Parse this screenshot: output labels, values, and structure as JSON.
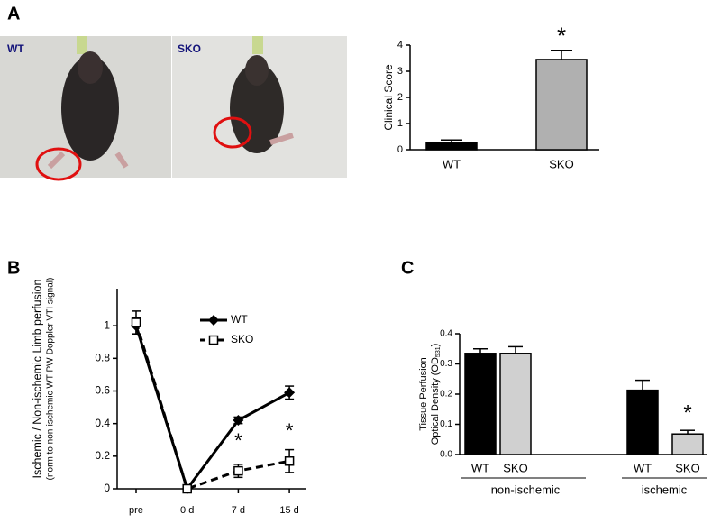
{
  "panels": [
    "A",
    "B",
    "C"
  ],
  "photos": [
    {
      "label": "WT"
    },
    {
      "label": "SKO"
    }
  ],
  "chart_data": [
    {
      "type": "bar",
      "ylabel": "Clinical Score",
      "categories": [
        "WT",
        "SKO"
      ],
      "values": [
        0.25,
        3.45
      ],
      "errors": [
        0.12,
        0.35
      ],
      "colors": [
        "#000000",
        "#b0b0b0"
      ],
      "significance": [
        null,
        "*"
      ],
      "ylim": [
        0,
        4
      ],
      "yticks": [
        0,
        1,
        2,
        3,
        4
      ]
    },
    {
      "type": "line",
      "ylabel": "Ischemic / Non-ischemic Limb perfusion",
      "ylabel_note": "(norm to non-ischemic WT PW-Doppler VTI signal)",
      "categories": [
        "pre",
        "0 d",
        "7 d",
        "15 d"
      ],
      "series": [
        {
          "name": "WT",
          "color": "#000000",
          "values": [
            1.0,
            0,
            0.42,
            0.59
          ],
          "errors": [
            0.05,
            0.01,
            0.02,
            0.04
          ],
          "significance": [
            null,
            null,
            null,
            null
          ]
        },
        {
          "name": "SKO",
          "color": "#000000",
          "values": [
            1.02,
            0,
            0.11,
            0.17
          ],
          "errors": [
            0.07,
            0.01,
            0.04,
            0.07
          ],
          "significance": [
            null,
            null,
            "*",
            "*"
          ]
        }
      ],
      "ylim": [
        0,
        1.2
      ],
      "yticks": [
        0,
        0.2,
        0.4,
        0.6,
        0.8,
        1
      ]
    },
    {
      "type": "grouped-bar",
      "ylabel": "Tissue Perfusion",
      "ylabel2": {
        "text": "Optical Density (OD",
        "subscript": "531",
        "end": ")"
      },
      "categories": [
        "WT",
        "SKO",
        "WT",
        "SKO"
      ],
      "groups": [
        "non-ischemic",
        "ischemic"
      ],
      "values": [
        0.335,
        0.335,
        0.213,
        0.068
      ],
      "errors": [
        0.015,
        0.022,
        0.033,
        0.012
      ],
      "colors": [
        "#000000",
        "#d0d0d0",
        "#000000",
        "#d0d0d0"
      ],
      "significance": [
        null,
        null,
        null,
        "*"
      ],
      "ylim": [
        0,
        0.4
      ],
      "yticks": [
        {
          "value": 0,
          "label": "0.0"
        },
        0.1,
        0.2,
        0.3,
        0.4
      ]
    }
  ]
}
